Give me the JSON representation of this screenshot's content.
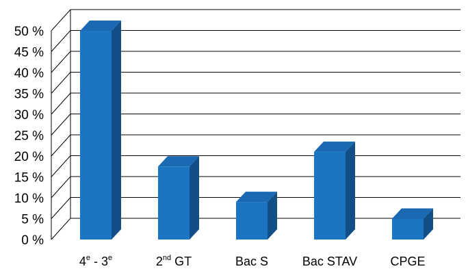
{
  "chart_data": {
    "type": "bar",
    "categories": [
      {
        "label": "4",
        "sup": "e",
        "mid": " - 3",
        "sup2": "e"
      },
      {
        "label": "2",
        "sup": "nd",
        "mid": " GT",
        "sup2": ""
      },
      {
        "label": "Bac S",
        "sup": "",
        "mid": "",
        "sup2": ""
      },
      {
        "label": "Bac STAV",
        "sup": "",
        "mid": "",
        "sup2": ""
      },
      {
        "label": "CPGE",
        "sup": "",
        "mid": "",
        "sup2": ""
      }
    ],
    "values": [
      50,
      17.5,
      9,
      21,
      5
    ],
    "yticks": [
      "0 %",
      "5 %",
      "10 %",
      "15 %",
      "20 %",
      "25 %",
      "30 %",
      "35 %",
      "40 %",
      "45 %",
      "50 %"
    ],
    "ylim": [
      0,
      50
    ],
    "grid": true,
    "colors": {
      "bar_front": "#1c75c3",
      "bar_top": "#1a69b2",
      "bar_side": "#124f86",
      "grid": "#000000"
    }
  }
}
